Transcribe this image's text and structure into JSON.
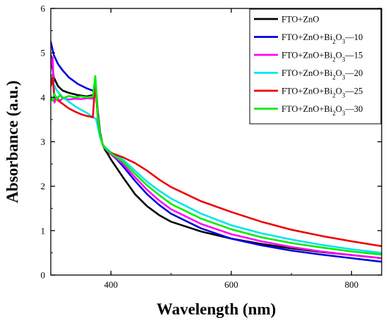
{
  "chart_data": {
    "type": "line",
    "xlabel": "Wavelength (nm)",
    "ylabel": "Absorbance (a.u.)",
    "xlim": [
      300,
      850
    ],
    "ylim": [
      0,
      6
    ],
    "x_ticks": [
      "400",
      "600",
      "800"
    ],
    "x_tick_values": [
      400,
      600,
      800
    ],
    "y_ticks": [
      "0",
      "1",
      "2",
      "3",
      "4",
      "5",
      "6"
    ],
    "y_tick_values": [
      0,
      1,
      2,
      3,
      4,
      5,
      6
    ],
    "grid": false,
    "legend_position": "top-right",
    "series": [
      {
        "name": "FTO+ZnO",
        "name_parts": {
          "prefix": "FTO+ZnO",
          "sub1": "",
          "mid": "",
          "sub2": "",
          "suffix": ""
        },
        "color": "#000000",
        "x": [
          300,
          305,
          312,
          320,
          330,
          345,
          360,
          370,
          375,
          378,
          382,
          386,
          390,
          395,
          400,
          410,
          420,
          440,
          460,
          480,
          500,
          550,
          600,
          650,
          700,
          750,
          800,
          850
        ],
        "y": [
          4.95,
          4.45,
          4.25,
          4.15,
          4.1,
          4.05,
          4.02,
          4.05,
          4.25,
          3.7,
          3.2,
          2.95,
          2.82,
          2.72,
          2.6,
          2.4,
          2.2,
          1.82,
          1.55,
          1.35,
          1.2,
          0.98,
          0.82,
          0.7,
          0.6,
          0.52,
          0.45,
          0.38
        ]
      },
      {
        "name": "FTO+ZnO+Bi2O3—10",
        "name_parts": {
          "prefix": "FTO+ZnO+Bi",
          "sub1": "2",
          "mid": "O",
          "sub2": "3",
          "suffix": "—10"
        },
        "color": "#0000dd",
        "x": [
          300,
          305,
          312,
          320,
          330,
          345,
          360,
          370,
          375,
          378,
          382,
          386,
          390,
          395,
          400,
          410,
          420,
          440,
          460,
          480,
          500,
          550,
          600,
          650,
          700,
          750,
          800,
          850
        ],
        "y": [
          5.25,
          4.95,
          4.75,
          4.6,
          4.45,
          4.3,
          4.2,
          4.15,
          4.1,
          3.6,
          3.15,
          2.95,
          2.85,
          2.78,
          2.72,
          2.6,
          2.45,
          2.12,
          1.82,
          1.58,
          1.38,
          1.05,
          0.82,
          0.67,
          0.55,
          0.46,
          0.38,
          0.3
        ]
      },
      {
        "name": "FTO+ZnO+Bi2O3—15",
        "name_parts": {
          "prefix": "FTO+ZnO+Bi",
          "sub1": "2",
          "mid": "O",
          "sub2": "3",
          "suffix": "—15"
        },
        "color": "#ff00ff",
        "x": [
          300,
          303,
          306,
          310,
          315,
          320,
          330,
          340,
          350,
          360,
          370,
          374,
          378,
          382,
          386,
          390,
          395,
          400,
          410,
          420,
          440,
          460,
          480,
          500,
          550,
          600,
          650,
          700,
          750,
          800,
          850
        ],
        "y": [
          4.7,
          4.9,
          3.88,
          4.0,
          3.92,
          3.98,
          3.95,
          3.97,
          3.96,
          3.98,
          3.97,
          4.35,
          3.6,
          3.15,
          2.95,
          2.85,
          2.78,
          2.72,
          2.62,
          2.5,
          2.2,
          1.92,
          1.68,
          1.48,
          1.15,
          0.92,
          0.76,
          0.63,
          0.53,
          0.45,
          0.38
        ]
      },
      {
        "name": "FTO+ZnO+Bi2O3—20",
        "name_parts": {
          "prefix": "FTO+ZnO+Bi",
          "sub1": "2",
          "mid": "O",
          "sub2": "3",
          "suffix": "—20"
        },
        "color": "#00e5ee",
        "x": [
          300,
          305,
          310,
          320,
          330,
          340,
          350,
          360,
          370,
          375,
          378,
          382,
          386,
          390,
          395,
          400,
          410,
          420,
          440,
          460,
          480,
          500,
          550,
          600,
          650,
          700,
          750,
          800,
          850
        ],
        "y": [
          4.5,
          4.3,
          4.15,
          4.0,
          3.9,
          3.8,
          3.72,
          3.65,
          3.55,
          3.52,
          3.35,
          3.1,
          2.95,
          2.88,
          2.82,
          2.76,
          2.68,
          2.6,
          2.35,
          2.1,
          1.9,
          1.72,
          1.38,
          1.12,
          0.94,
          0.8,
          0.68,
          0.58,
          0.5
        ]
      },
      {
        "name": "FTO+ZnO+Bi2O3—25",
        "name_parts": {
          "prefix": "FTO+ZnO+Bi",
          "sub1": "2",
          "mid": "O",
          "sub2": "3",
          "suffix": "—25"
        },
        "color": "#ee0000",
        "x": [
          300,
          303,
          306,
          310,
          320,
          330,
          340,
          350,
          360,
          370,
          374,
          378,
          382,
          386,
          390,
          395,
          400,
          420,
          440,
          460,
          480,
          500,
          550,
          600,
          650,
          700,
          750,
          800,
          850
        ],
        "y": [
          4.25,
          4.45,
          4.0,
          3.95,
          3.85,
          3.75,
          3.68,
          3.62,
          3.58,
          3.55,
          4.4,
          3.55,
          3.15,
          2.95,
          2.85,
          2.8,
          2.75,
          2.65,
          2.52,
          2.35,
          2.15,
          1.98,
          1.66,
          1.42,
          1.2,
          1.02,
          0.88,
          0.76,
          0.65
        ]
      },
      {
        "name": "FTO+ZnO+Bi2O3—30",
        "name_parts": {
          "prefix": "FTO+ZnO+Bi",
          "sub1": "2",
          "mid": "O",
          "sub2": "3",
          "suffix": "—30"
        },
        "color": "#00ee00",
        "x": [
          300,
          303,
          306,
          310,
          315,
          320,
          330,
          340,
          350,
          360,
          370,
          374,
          378,
          382,
          386,
          390,
          395,
          400,
          410,
          420,
          440,
          460,
          480,
          500,
          550,
          600,
          650,
          700,
          750,
          800,
          850
        ],
        "y": [
          4.0,
          3.92,
          4.08,
          3.95,
          4.05,
          3.98,
          4.03,
          4.0,
          4.02,
          4.0,
          4.02,
          4.48,
          3.6,
          3.15,
          2.95,
          2.85,
          2.8,
          2.74,
          2.65,
          2.55,
          2.28,
          2.02,
          1.8,
          1.6,
          1.27,
          1.03,
          0.85,
          0.72,
          0.62,
          0.53,
          0.46
        ]
      }
    ]
  }
}
